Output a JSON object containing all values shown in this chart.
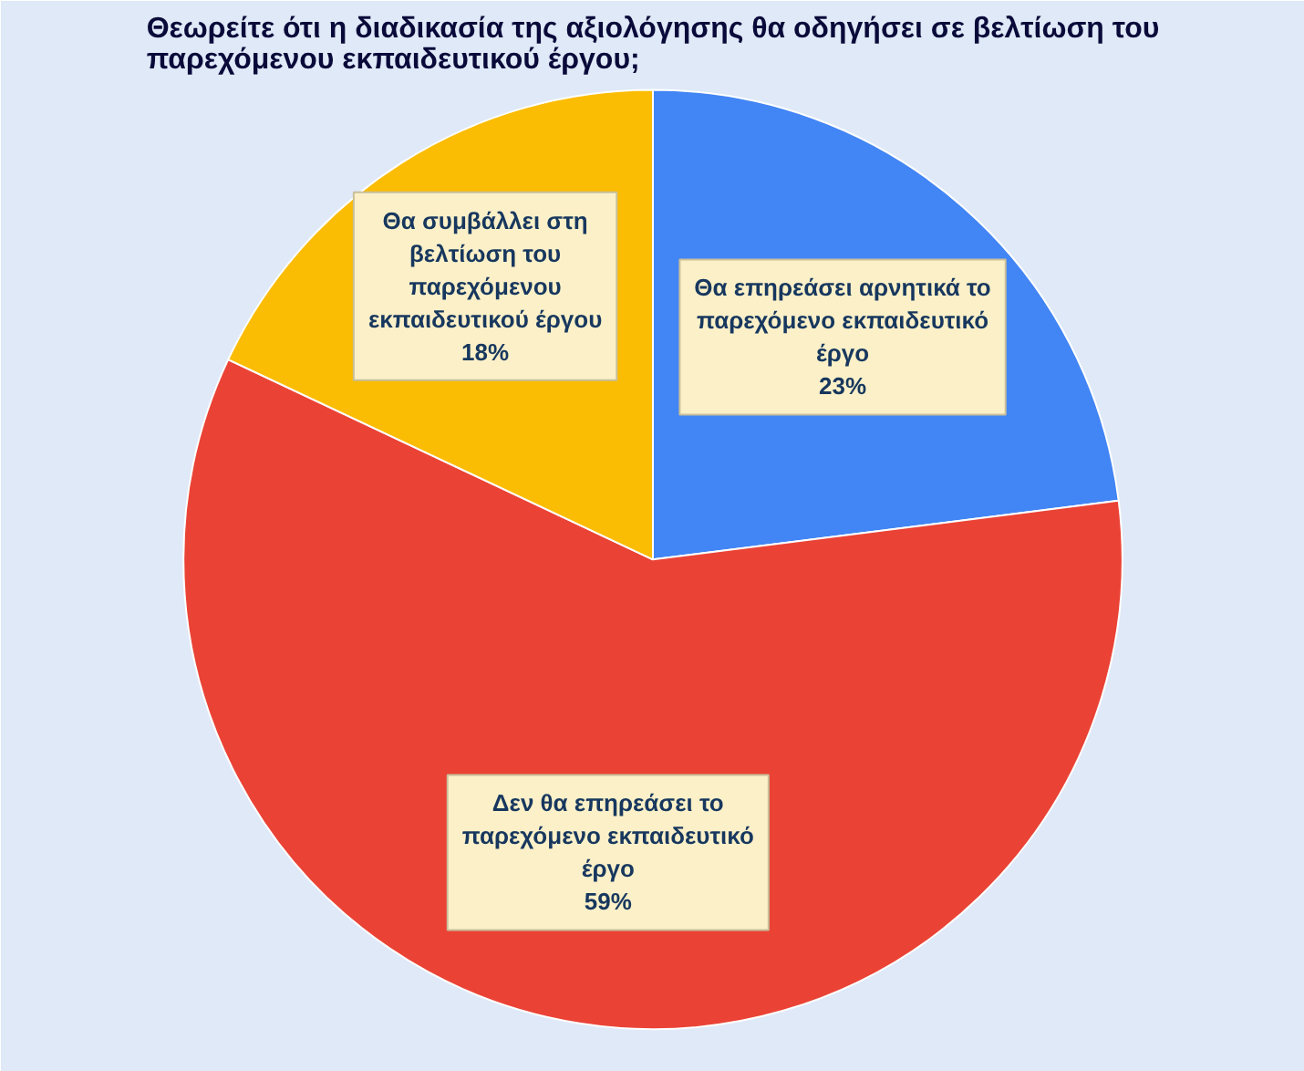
{
  "chart_data": {
    "type": "pie",
    "title": "Θεωρείτε ότι η διαδικασία της αξιολόγησης θα οδηγήσει σε βελτίωση του παρεχόμενου εκπαιδευτικού έργου;",
    "categories": [
      "Θα επηρεάσει αρνητικά το παρεχόμενο εκπαιδευτικό έργο",
      "Δεν θα επηρεάσει το παρεχόμενο εκπαιδευτικό έργο",
      "Θα συμβάλλει στη βελτίωση του παρεχόμενου εκπαιδευτικού έργου"
    ],
    "values": [
      23,
      59,
      18
    ],
    "colors": [
      "#4285f4",
      "#ea4335",
      "#fbbc04"
    ],
    "value_labels": [
      "23%",
      "59%",
      "18%"
    ]
  }
}
